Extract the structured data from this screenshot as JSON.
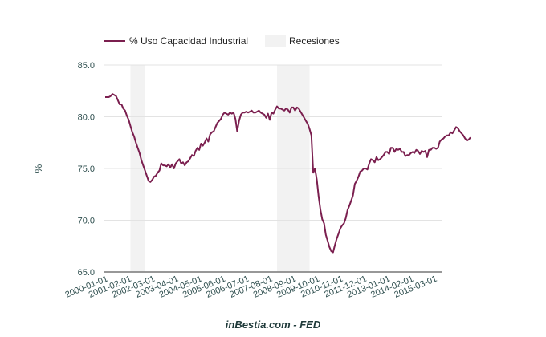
{
  "chart_data": {
    "type": "line",
    "title": "",
    "ylabel": "%",
    "xlabel": "",
    "ylim": [
      65,
      85
    ],
    "yticks": [
      "85.0",
      "80.0",
      "75.0",
      "70.0",
      "65.0"
    ],
    "ytick_values": [
      85,
      80,
      75,
      70,
      65
    ],
    "xlim": [
      "2000-01-01",
      "2015-07-01"
    ],
    "xticks": [
      "2000-01-01",
      "2001-02-01",
      "2002-03-01",
      "2003-04-01",
      "2004-05-01",
      "2005-06-01",
      "2006-07-01",
      "2007-08-01",
      "2008-09-01",
      "2009-10-01",
      "2010-11-01",
      "2011-12-01",
      "2013-01-01",
      "2014-02-01",
      "2015-03-01"
    ],
    "grid": true,
    "legend": {
      "position": "top-left",
      "entries": [
        {
          "label": "% Uso Capacidad Industrial",
          "type": "line",
          "color": "#7b1f4f"
        },
        {
          "label": "Recesiones",
          "type": "area",
          "color": "#f2f2f2"
        }
      ]
    },
    "recessions": [
      {
        "start": "2001-03-01",
        "end": "2001-11-01"
      },
      {
        "start": "2007-12-01",
        "end": "2009-06-01"
      }
    ],
    "series": [
      {
        "name": "% Uso Capacidad Industrial",
        "color": "#7b1f4f",
        "start": "2000-01-01",
        "frequency": "monthly",
        "values": [
          81.9,
          81.9,
          81.9,
          82.0,
          82.2,
          82.1,
          82.0,
          81.6,
          81.2,
          81.2,
          80.8,
          80.6,
          80.1,
          79.7,
          79.1,
          78.5,
          78.1,
          77.5,
          77.0,
          76.5,
          75.8,
          75.3,
          74.8,
          74.3,
          73.8,
          73.7,
          73.9,
          74.2,
          74.3,
          74.6,
          74.8,
          75.5,
          75.3,
          75.3,
          75.2,
          75.4,
          75.1,
          75.4,
          75.0,
          75.5,
          75.7,
          75.9,
          75.5,
          75.6,
          75.3,
          75.6,
          75.7,
          76.0,
          76.3,
          76.2,
          76.7,
          77.0,
          76.8,
          77.4,
          77.2,
          77.5,
          77.9,
          77.6,
          78.3,
          78.5,
          78.6,
          79.0,
          79.4,
          79.6,
          79.8,
          80.2,
          80.4,
          80.3,
          80.2,
          80.4,
          80.3,
          80.4,
          79.8,
          78.6,
          79.6,
          80.2,
          80.4,
          80.4,
          80.5,
          80.4,
          80.5,
          80.6,
          80.4,
          80.4,
          80.5,
          80.6,
          80.4,
          80.3,
          80.2,
          79.9,
          80.3,
          79.7,
          80.4,
          80.3,
          80.7,
          81.0,
          80.8,
          80.8,
          80.7,
          80.6,
          80.8,
          80.7,
          80.4,
          80.9,
          80.9,
          80.6,
          80.9,
          80.8,
          80.5,
          80.2,
          79.9,
          79.6,
          79.3,
          78.8,
          78.2,
          74.6,
          75.0,
          73.9,
          72.3,
          71.0,
          70.1,
          69.7,
          68.6,
          68.0,
          67.4,
          67.0,
          66.9,
          67.6,
          68.2,
          68.7,
          69.2,
          69.5,
          69.7,
          70.2,
          71.0,
          71.4,
          71.9,
          72.4,
          73.5,
          73.8,
          74.2,
          74.7,
          74.8,
          75.0,
          75.0,
          74.9,
          75.5,
          75.9,
          75.8,
          75.6,
          76.1,
          75.8,
          75.9,
          76.1,
          76.3,
          76.6,
          76.6,
          76.4,
          77.0,
          77.0,
          76.6,
          76.9,
          76.8,
          76.9,
          76.6,
          76.6,
          76.2,
          76.3,
          76.3,
          76.5,
          76.6,
          76.5,
          76.8,
          76.7,
          76.4,
          76.7,
          76.6,
          76.7,
          76.1,
          76.8,
          76.8,
          77.0,
          77.0,
          76.9,
          77.0,
          77.6,
          77.8,
          77.9,
          78.1,
          78.2,
          78.2,
          78.5,
          78.4,
          78.7,
          79.0,
          78.9,
          78.6,
          78.4,
          78.2,
          77.9,
          77.7,
          77.8,
          78.0
        ]
      }
    ],
    "source": "inBestia.com - FED"
  }
}
